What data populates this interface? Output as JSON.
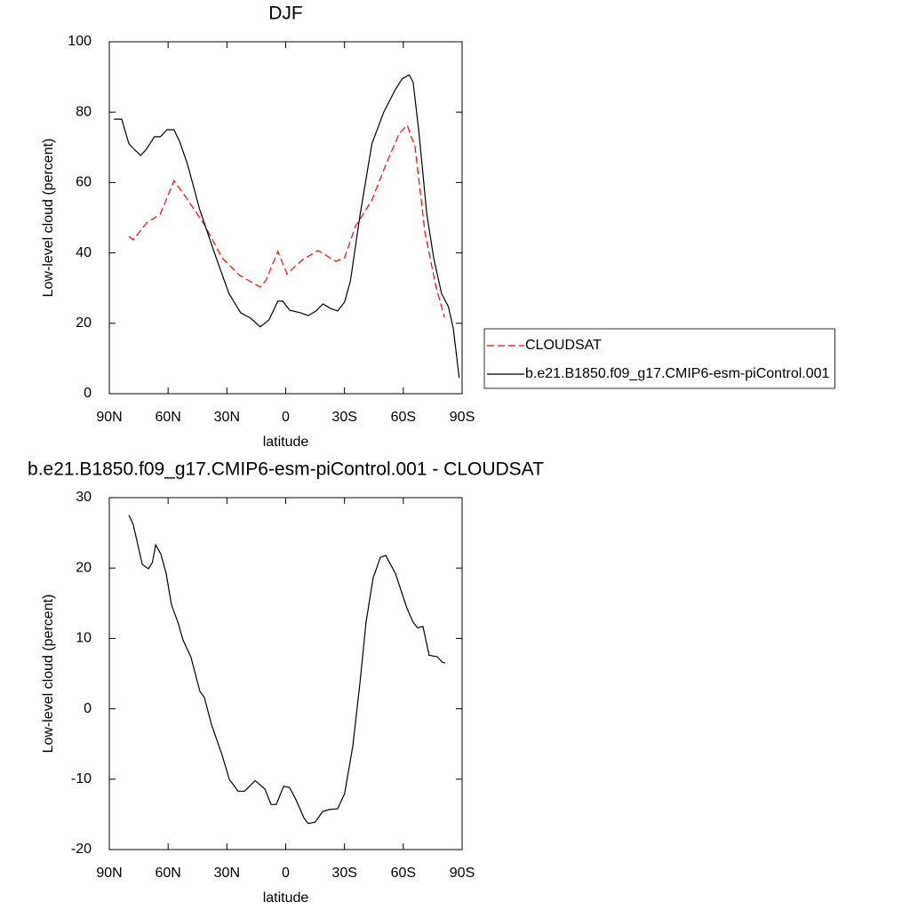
{
  "chart_data": [
    {
      "type": "line",
      "title": "DJF",
      "xlabel": "latitude",
      "ylabel": "Low-level cloud (percent)",
      "xlim": [
        90,
        -90
      ],
      "xticks": [
        {
          "value": 90,
          "label": "90N"
        },
        {
          "value": 60,
          "label": "60N"
        },
        {
          "value": 30,
          "label": "30N"
        },
        0,
        {
          "value": -30,
          "label": "30S"
        },
        {
          "value": -60,
          "label": "60S"
        },
        {
          "value": -90,
          "label": "90S"
        }
      ],
      "ylim": [
        0,
        100
      ],
      "yticks": [
        0,
        20,
        40,
        60,
        80,
        100
      ],
      "legend": "right",
      "series": [
        {
          "name": "CLOUDSAT",
          "color": "#ff0000",
          "dashed": true,
          "x": [
            80,
            77.8,
            71,
            64,
            57,
            50.5,
            41.5,
            32.5,
            23.5,
            13,
            10,
            4,
            -0.7,
            -8.4,
            -16.5,
            -25.6,
            -30,
            -35.5,
            -44,
            -51,
            -58,
            -62,
            -66,
            -71,
            -76.4,
            -81
          ],
          "values": [
            44.7,
            43.7,
            48.5,
            51,
            60.5,
            55.5,
            48,
            38.6,
            33.6,
            30.3,
            32.3,
            40.4,
            34,
            38,
            40.7,
            37.6,
            38.6,
            47.5,
            55,
            65,
            74,
            76.3,
            70,
            46,
            31,
            21.7
          ]
        },
        {
          "name": "b.e21.B1850.f09_g17.CMIP6-esm-piControl.001",
          "color": "#000000",
          "dashed": false,
          "x": [
            87.7,
            83.7,
            80,
            77.8,
            74,
            71,
            67,
            64,
            60.5,
            57,
            54,
            50,
            44,
            37,
            29,
            23,
            18,
            13,
            8.5,
            4,
            1.5,
            -2,
            -7.5,
            -11.5,
            -15.5,
            -19,
            -23,
            -26.5,
            -30,
            -33,
            -38,
            -44,
            -50,
            -56,
            -59.5,
            -63,
            -65,
            -68,
            -72,
            -75.5,
            -79.5,
            -83,
            -85.5,
            -88.5
          ],
          "values": [
            78,
            78,
            71,
            69.7,
            67.7,
            69.5,
            73,
            73,
            75,
            75,
            71.5,
            65,
            52.5,
            41,
            28.5,
            23,
            21.5,
            19,
            21,
            26.3,
            26.3,
            23.7,
            23,
            22.2,
            23.5,
            25.5,
            24.2,
            23.5,
            26,
            32,
            51,
            71,
            80,
            86.5,
            89.5,
            90.6,
            88.5,
            74,
            51,
            38.6,
            28.5,
            24.7,
            18.5,
            4.5
          ]
        }
      ]
    },
    {
      "type": "line",
      "title": "b.e21.B1850.f09_g17.CMIP6-esm-piControl.001 - CLOUDSAT",
      "xlabel": "latitude",
      "ylabel": "Low-level cloud (percent)",
      "xlim": [
        90,
        -90
      ],
      "xticks": [
        {
          "value": 90,
          "label": "90N"
        },
        {
          "value": 60,
          "label": "60N"
        },
        {
          "value": 30,
          "label": "30N"
        },
        0,
        {
          "value": -30,
          "label": "30S"
        },
        {
          "value": -60,
          "label": "60S"
        },
        {
          "value": -90,
          "label": "90S"
        }
      ],
      "ylim": [
        -20,
        30
      ],
      "yticks": [
        -20,
        -10,
        0,
        10,
        20,
        30
      ],
      "series": [
        {
          "color": "#000000",
          "dashed": false,
          "x": [
            80,
            77.8,
            73.2,
            70,
            68,
            66.4,
            63.7,
            61,
            58.3,
            55,
            52.4,
            48.3,
            43.8,
            41.5,
            37.9,
            32.4,
            28.8,
            24.3,
            21,
            15.6,
            10.6,
            7.5,
            4.8,
            1.1,
            -2,
            -5.2,
            -9.3,
            -11.5,
            -15.1,
            -18.8,
            -22.4,
            -26.5,
            -30,
            -34.2,
            -37.8,
            -41,
            -44.6,
            -48.3,
            -51,
            -56,
            -62,
            -65,
            -67.3,
            -70,
            -73.2,
            -77.3,
            -80,
            -81.4
          ],
          "values": [
            27.5,
            26.2,
            20.5,
            19.9,
            20.8,
            23.3,
            22,
            19.2,
            14.8,
            12.3,
            9.8,
            7.3,
            2.5,
            1.6,
            -2.2,
            -6.6,
            -10,
            -11.7,
            -11.7,
            -10.2,
            -11.4,
            -13.6,
            -13.6,
            -11,
            -11.2,
            -12.9,
            -15.5,
            -16.3,
            -16.1,
            -14.6,
            -14.3,
            -14.2,
            -12.1,
            -5.4,
            3.5,
            12.3,
            18.6,
            21.5,
            21.8,
            19.2,
            14.2,
            12.3,
            11.5,
            11.7,
            7.6,
            7.4,
            6.6,
            6.5
          ]
        }
      ]
    }
  ]
}
